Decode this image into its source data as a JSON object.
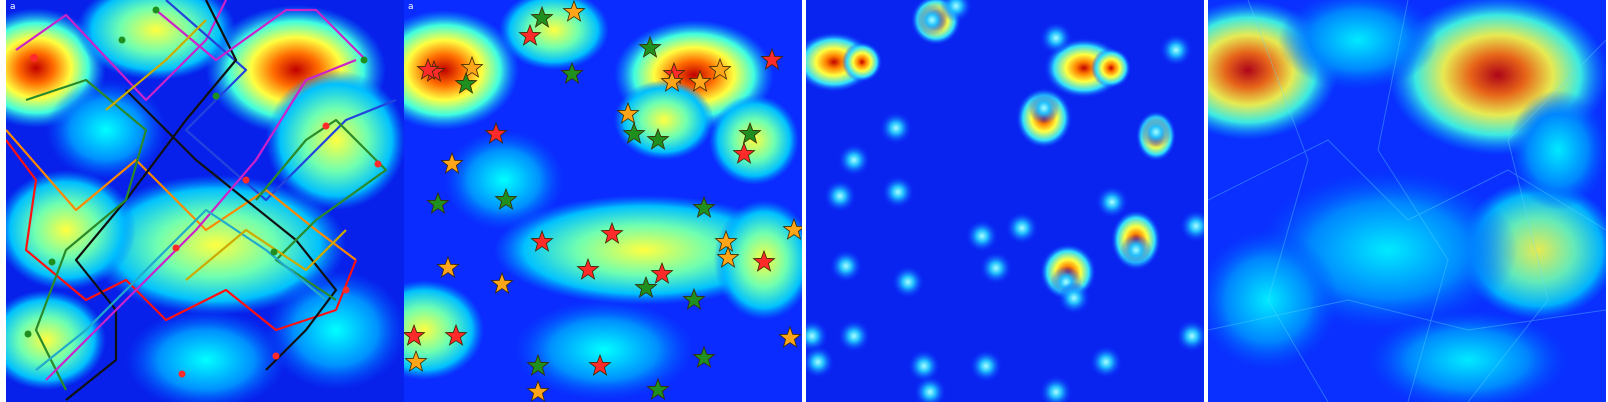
{
  "panels": [
    {
      "label": "a",
      "type": "heatmap-with-paths-and-markers"
    },
    {
      "label": "a",
      "type": "heatmap-with-markers"
    },
    {
      "label": "",
      "type": "heatmap-sparse-sources"
    },
    {
      "label": "",
      "type": "heatmap-diffused"
    }
  ],
  "colors": {
    "colormap": [
      "#00007f",
      "#0000ff",
      "#00ffff",
      "#ffff00",
      "#ff0000",
      "#7f0000"
    ],
    "marker_red": "#ff2a2a",
    "marker_green": "#1f8f1f",
    "marker_orange": "#ffa51a"
  }
}
